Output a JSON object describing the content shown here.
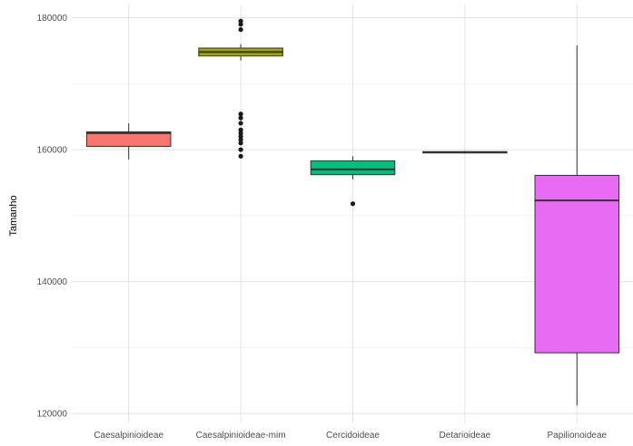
{
  "chart_data": {
    "type": "boxplot",
    "title": "",
    "xlabel": "",
    "ylabel": "Tamanho",
    "ylim": [
      118500,
      182000
    ],
    "yticks": [
      120000,
      140000,
      160000,
      180000
    ],
    "grid": true,
    "legend": "none",
    "categories": [
      "Caesalpinioideae",
      "Caesalpinioideae-mim",
      "Cercidoideae",
      "Detarioideae",
      "Papilionoideae"
    ],
    "boxes": [
      {
        "category": "Caesalpinioideae",
        "color": "#F8766D",
        "min": 158500,
        "q1": 160500,
        "median": 162500,
        "q3": 162700,
        "max": 164000,
        "outliers": []
      },
      {
        "category": "Caesalpinioideae-mim",
        "color": "#A3A500",
        "min": 173500,
        "q1": 174200,
        "median": 174800,
        "q3": 175400,
        "max": 176000,
        "outliers": [
          179500,
          179000,
          178200,
          165400,
          164800,
          164000,
          163000,
          162500,
          162000,
          161500,
          161000,
          160000,
          159000
        ]
      },
      {
        "category": "Cercidoideae",
        "color": "#00BF7D",
        "min": 155500,
        "q1": 156200,
        "median": 157000,
        "q3": 158300,
        "max": 159000,
        "outliers": [
          151800
        ]
      },
      {
        "category": "Detarioideae",
        "color": "#00B0F6",
        "min": 159400,
        "q1": 159500,
        "median": 159600,
        "q3": 159700,
        "max": 159800,
        "outliers": []
      },
      {
        "category": "Papilionoideae",
        "color": "#E76BF3",
        "min": 121200,
        "q1": 129200,
        "median": 152300,
        "q3": 156100,
        "max": 175800,
        "outliers": []
      }
    ]
  }
}
